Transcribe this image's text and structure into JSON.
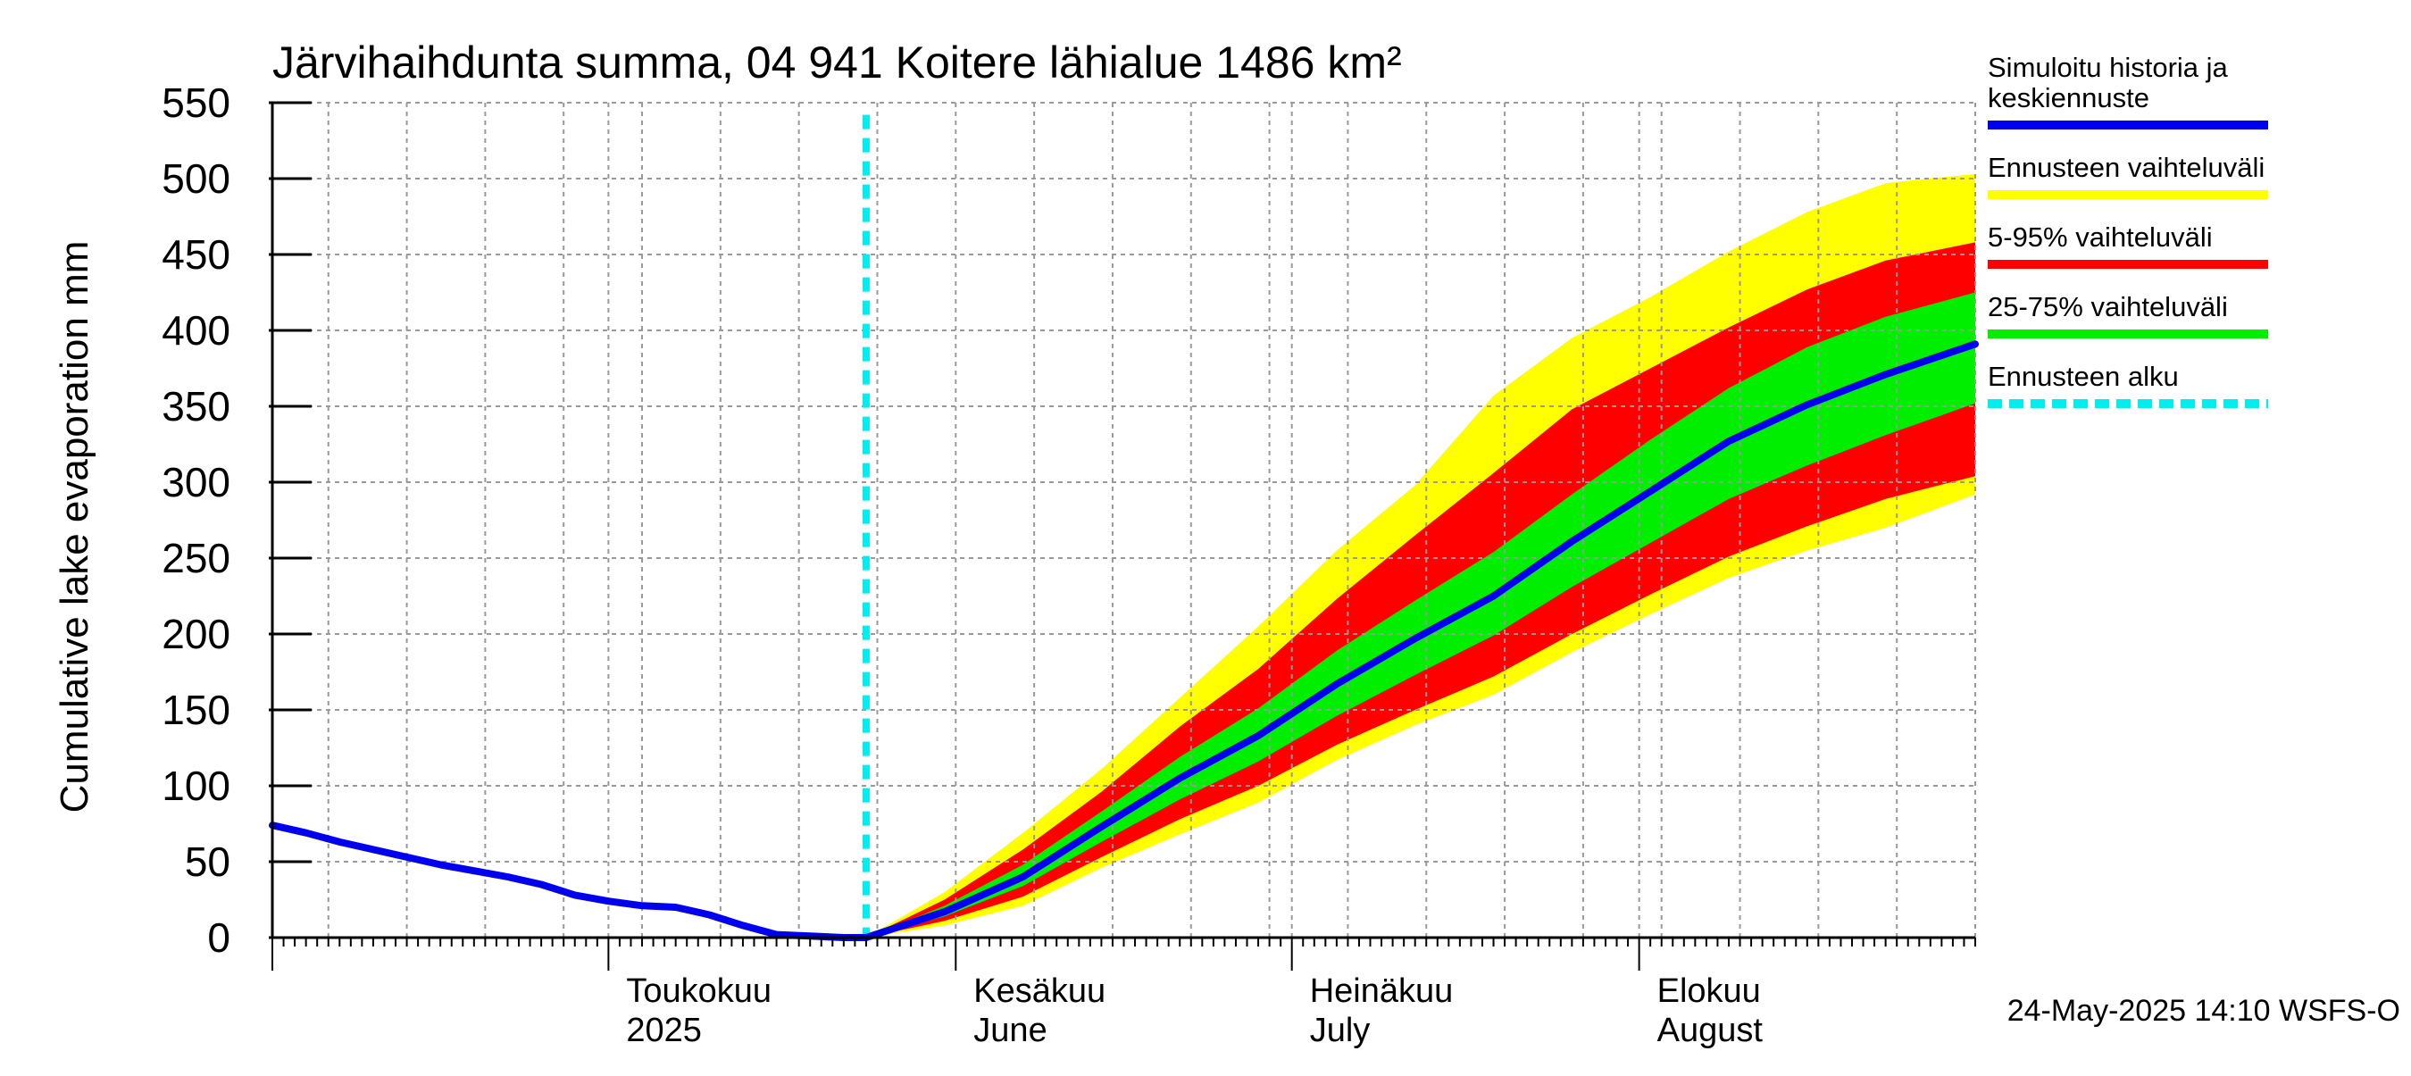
{
  "chart_data": {
    "type": "area",
    "title": "Järvihaihdunta summa, 04 941 Koitere lähialue 1486 km²",
    "ylabel": "Cumulative lake evaporation   mm",
    "ylim": [
      0,
      550
    ],
    "yticks": [
      0,
      50,
      100,
      150,
      200,
      250,
      300,
      350,
      400,
      450,
      500,
      550
    ],
    "xlim": [
      "2025-04-01",
      "2025-08-31"
    ],
    "grid": true,
    "legend_position": "right",
    "timestamp": "24-May-2025 14:10 WSFS-O",
    "forecast_start": "2025-05-24",
    "month_labels": [
      {
        "date": "2025-05-01",
        "line1": "Toukokuu",
        "line2": "2025"
      },
      {
        "date": "2025-06-01",
        "line1": "Kesäkuu",
        "line2": "June"
      },
      {
        "date": "2025-07-01",
        "line1": "Heinäkuu",
        "line2": "July"
      },
      {
        "date": "2025-08-01",
        "line1": "Elokuu",
        "line2": "August"
      }
    ],
    "legend": [
      {
        "label": "Simuloitu historia ja keskiennuste",
        "color": "#0000ee",
        "style": "solid"
      },
      {
        "label": "Ennusteen vaihteluväli",
        "color": "#ffff00",
        "style": "solid"
      },
      {
        "label": "5-95% vaihteluväli",
        "color": "#ff0000",
        "style": "solid"
      },
      {
        "label": "25-75% vaihteluväli",
        "color": "#00ee00",
        "style": "solid"
      },
      {
        "label": "Ennusteen alku",
        "color": "#00eeee",
        "style": "dashed"
      }
    ],
    "colors": {
      "median": "#0000ee",
      "range": "#ffff00",
      "p5_95": "#ff0000",
      "p25_75": "#00ee00",
      "forecast_start": "#00eeee"
    },
    "history": {
      "x": [
        "2025-04-01",
        "2025-04-04",
        "2025-04-07",
        "2025-04-10",
        "2025-04-13",
        "2025-04-16",
        "2025-04-19",
        "2025-04-22",
        "2025-04-25",
        "2025-04-28",
        "2025-05-01",
        "2025-05-04",
        "2025-05-07",
        "2025-05-10",
        "2025-05-13",
        "2025-05-16",
        "2025-05-19",
        "2025-05-22",
        "2025-05-24"
      ],
      "y": [
        74,
        69,
        63,
        58,
        53,
        48,
        44,
        40,
        35,
        28,
        24,
        21,
        20,
        15,
        8,
        2,
        1,
        0,
        0
      ]
    },
    "forecast": {
      "x": [
        "2025-05-24",
        "2025-05-31",
        "2025-06-07",
        "2025-06-14",
        "2025-06-21",
        "2025-06-28",
        "2025-07-05",
        "2025-07-12",
        "2025-07-19",
        "2025-07-26",
        "2025-08-02",
        "2025-08-09",
        "2025-08-16",
        "2025-08-23",
        "2025-08-31"
      ],
      "median": [
        0,
        17,
        40,
        73,
        105,
        133,
        167,
        197,
        225,
        261,
        294,
        327,
        351,
        371,
        391
      ],
      "p25": [
        0,
        14,
        34,
        63,
        91,
        116,
        146,
        173,
        199,
        231,
        260,
        289,
        311,
        331,
        352
      ],
      "p75": [
        0,
        21,
        48,
        83,
        119,
        151,
        189,
        222,
        254,
        292,
        328,
        362,
        389,
        409,
        425
      ],
      "p5": [
        0,
        11,
        27,
        53,
        78,
        100,
        127,
        150,
        172,
        200,
        226,
        251,
        271,
        289,
        304
      ],
      "p95": [
        0,
        25,
        58,
        96,
        139,
        177,
        223,
        265,
        306,
        348,
        375,
        402,
        427,
        446,
        458
      ],
      "min": [
        0,
        8,
        21,
        46,
        68,
        89,
        117,
        140,
        160,
        188,
        213,
        237,
        255,
        270,
        292
      ],
      "max": [
        0,
        30,
        69,
        111,
        158,
        205,
        255,
        298,
        357,
        395,
        422,
        452,
        478,
        497,
        503
      ]
    }
  }
}
